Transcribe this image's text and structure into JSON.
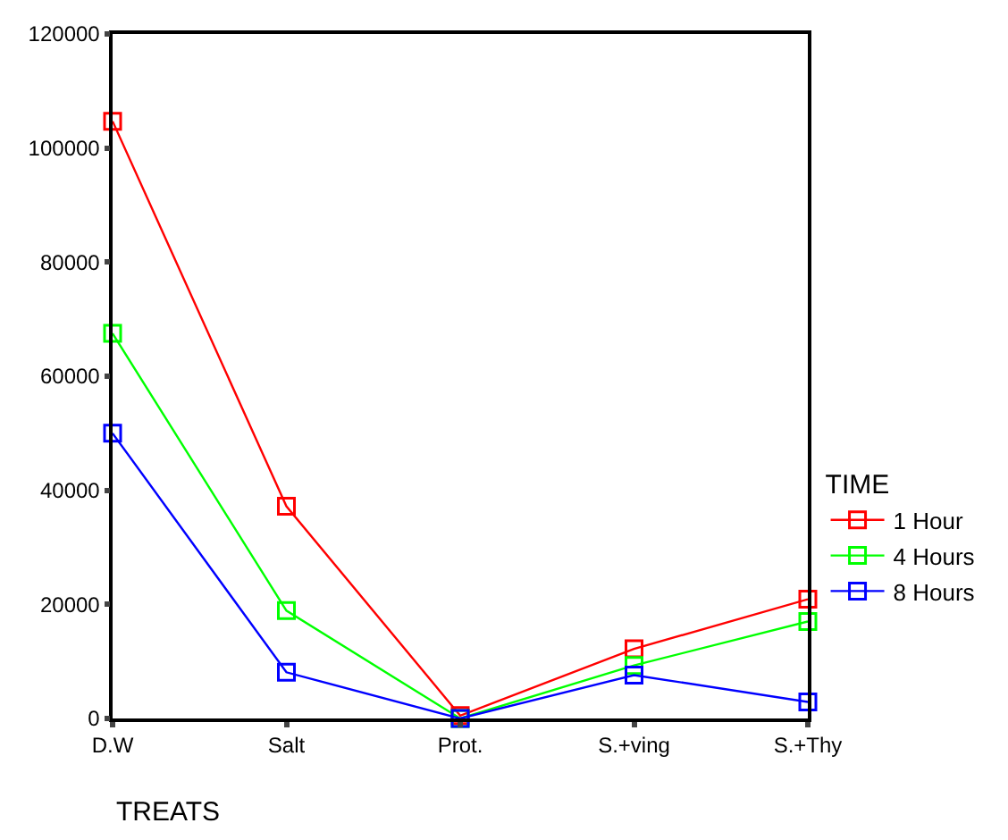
{
  "chart_data": {
    "type": "line",
    "xlabel": "TREATS",
    "legend_title": "TIME",
    "legend": "right",
    "marker": "square",
    "categories": [
      "D.W",
      "Salt",
      "Prot.",
      "S.+ving",
      "S.+Thy"
    ],
    "ylim": [
      0,
      120000
    ],
    "yticks": [
      0,
      20000,
      40000,
      60000,
      80000,
      100000,
      120000
    ],
    "series": [
      {
        "name": "1 Hour",
        "color": "#ff0000",
        "values": [
          104700,
          37200,
          500,
          12200,
          20900
        ]
      },
      {
        "name": "4 Hours",
        "color": "#00ff00",
        "values": [
          67500,
          18900,
          0,
          9300,
          17000
        ]
      },
      {
        "name": "8 Hours",
        "color": "#0000ff",
        "values": [
          50000,
          8100,
          0,
          7600,
          2900
        ]
      }
    ]
  }
}
